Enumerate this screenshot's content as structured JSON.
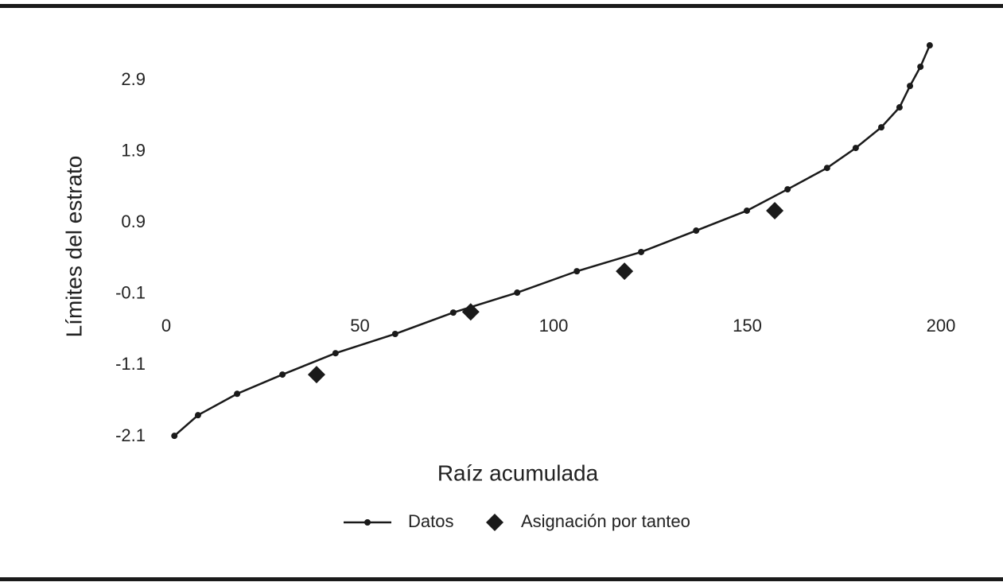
{
  "chart_data": {
    "type": "line",
    "x_label": "Raíz acumulada",
    "y_label": "Límites del estrato",
    "xlim": [
      0,
      200
    ],
    "xticks": [
      0,
      50,
      100,
      150,
      200
    ],
    "ylim": [
      -2.2,
      3.5
    ],
    "yticks": [
      -2.1,
      -1.1,
      -0.1,
      0.9,
      1.9,
      2.9
    ],
    "grid": false,
    "legend": "bottom",
    "series": [
      {
        "name": "Datos",
        "color": "#1a1a1a",
        "marker": "circle",
        "line": true,
        "x": [
          2.1,
          8.2,
          18.3,
          30.0,
          43.7,
          59.1,
          74.1,
          90.6,
          106.0,
          122.6,
          136.8,
          149.9,
          160.4,
          170.6,
          178.0,
          184.6,
          189.3,
          192.0,
          194.7,
          197.1
        ],
        "values": [
          -2.09,
          -1.8,
          -1.5,
          -1.23,
          -0.93,
          -0.66,
          -0.36,
          -0.08,
          0.22,
          0.49,
          0.79,
          1.07,
          1.37,
          1.67,
          1.95,
          2.24,
          2.52,
          2.82,
          3.09,
          3.39
        ]
      },
      {
        "name": "Asignación por tanteo",
        "color": "#1a1a1a",
        "marker": "diamond",
        "line": false,
        "x": [
          38.8,
          78.6,
          118.3,
          157.1
        ],
        "values": [
          -1.23,
          -0.35,
          0.22,
          1.07
        ]
      }
    ]
  }
}
